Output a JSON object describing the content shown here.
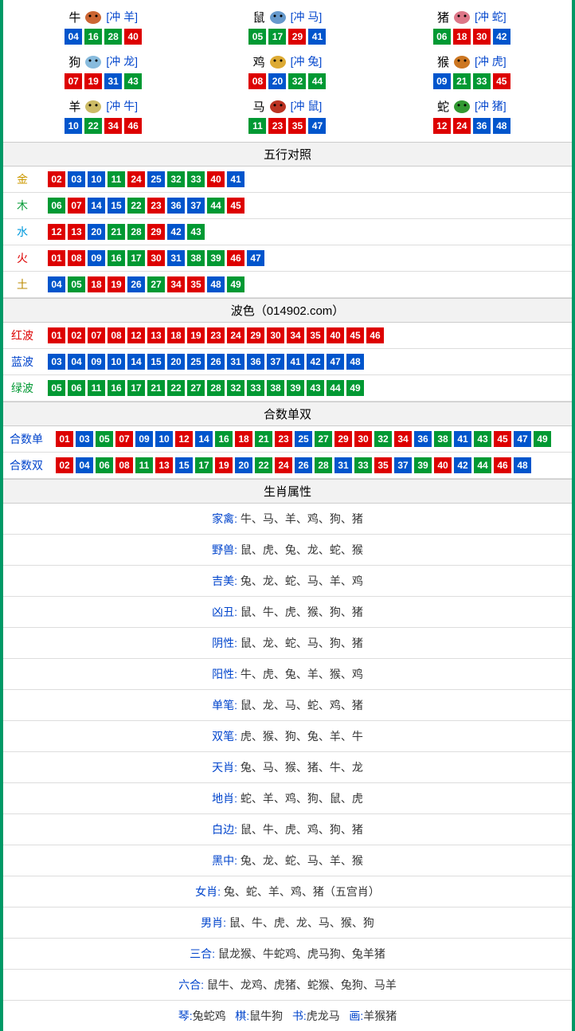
{
  "colors": {
    "red": "#dd0000",
    "blue": "#0055cc",
    "green": "#009933",
    "border": "#009966",
    "link": "#0044cc",
    "gold": "#cc9900",
    "wood": "#009933",
    "water": "#0099dd",
    "fire": "#dd0000",
    "earth": "#bb8800"
  },
  "zodiac": [
    {
      "name": "牛",
      "clash": "[冲 羊]",
      "icon": "#cc6633",
      "nums": [
        {
          "n": "04",
          "c": "blue"
        },
        {
          "n": "16",
          "c": "green"
        },
        {
          "n": "28",
          "c": "green"
        },
        {
          "n": "40",
          "c": "red"
        }
      ]
    },
    {
      "name": "鼠",
      "clash": "[冲 马]",
      "icon": "#6699cc",
      "nums": [
        {
          "n": "05",
          "c": "green"
        },
        {
          "n": "17",
          "c": "green"
        },
        {
          "n": "29",
          "c": "red"
        },
        {
          "n": "41",
          "c": "blue"
        }
      ]
    },
    {
      "name": "猪",
      "clash": "[冲 蛇]",
      "icon": "#dd7788",
      "nums": [
        {
          "n": "06",
          "c": "green"
        },
        {
          "n": "18",
          "c": "red"
        },
        {
          "n": "30",
          "c": "red"
        },
        {
          "n": "42",
          "c": "blue"
        }
      ]
    },
    {
      "name": "狗",
      "clash": "[冲 龙]",
      "icon": "#88bbdd",
      "nums": [
        {
          "n": "07",
          "c": "red"
        },
        {
          "n": "19",
          "c": "red"
        },
        {
          "n": "31",
          "c": "blue"
        },
        {
          "n": "43",
          "c": "green"
        }
      ]
    },
    {
      "name": "鸡",
      "clash": "[冲 兔]",
      "icon": "#ddaa33",
      "nums": [
        {
          "n": "08",
          "c": "red"
        },
        {
          "n": "20",
          "c": "blue"
        },
        {
          "n": "32",
          "c": "green"
        },
        {
          "n": "44",
          "c": "green"
        }
      ]
    },
    {
      "name": "猴",
      "clash": "[冲 虎]",
      "icon": "#cc7722",
      "nums": [
        {
          "n": "09",
          "c": "blue"
        },
        {
          "n": "21",
          "c": "green"
        },
        {
          "n": "33",
          "c": "green"
        },
        {
          "n": "45",
          "c": "red"
        }
      ]
    },
    {
      "name": "羊",
      "clash": "[冲 牛]",
      "icon": "#ccbb66",
      "nums": [
        {
          "n": "10",
          "c": "blue"
        },
        {
          "n": "22",
          "c": "green"
        },
        {
          "n": "34",
          "c": "red"
        },
        {
          "n": "46",
          "c": "red"
        }
      ]
    },
    {
      "name": "马",
      "clash": "[冲 鼠]",
      "icon": "#bb3322",
      "nums": [
        {
          "n": "11",
          "c": "green"
        },
        {
          "n": "23",
          "c": "red"
        },
        {
          "n": "35",
          "c": "red"
        },
        {
          "n": "47",
          "c": "blue"
        }
      ]
    },
    {
      "name": "蛇",
      "clash": "[冲 猪]",
      "icon": "#339933",
      "nums": [
        {
          "n": "12",
          "c": "red"
        },
        {
          "n": "24",
          "c": "red"
        },
        {
          "n": "36",
          "c": "blue"
        },
        {
          "n": "48",
          "c": "blue"
        }
      ]
    }
  ],
  "headers": {
    "wuxing": "五行对照",
    "bose": "波色（014902.com）",
    "heshu": "合数单双",
    "shuxing": "生肖属性"
  },
  "wuxing": [
    {
      "label": "金",
      "color": "gold",
      "nums": [
        {
          "n": "02",
          "c": "red"
        },
        {
          "n": "03",
          "c": "blue"
        },
        {
          "n": "10",
          "c": "blue"
        },
        {
          "n": "11",
          "c": "green"
        },
        {
          "n": "24",
          "c": "red"
        },
        {
          "n": "25",
          "c": "blue"
        },
        {
          "n": "32",
          "c": "green"
        },
        {
          "n": "33",
          "c": "green"
        },
        {
          "n": "40",
          "c": "red"
        },
        {
          "n": "41",
          "c": "blue"
        }
      ]
    },
    {
      "label": "木",
      "color": "wood",
      "nums": [
        {
          "n": "06",
          "c": "green"
        },
        {
          "n": "07",
          "c": "red"
        },
        {
          "n": "14",
          "c": "blue"
        },
        {
          "n": "15",
          "c": "blue"
        },
        {
          "n": "22",
          "c": "green"
        },
        {
          "n": "23",
          "c": "red"
        },
        {
          "n": "36",
          "c": "blue"
        },
        {
          "n": "37",
          "c": "blue"
        },
        {
          "n": "44",
          "c": "green"
        },
        {
          "n": "45",
          "c": "red"
        }
      ]
    },
    {
      "label": "水",
      "color": "water",
      "nums": [
        {
          "n": "12",
          "c": "red"
        },
        {
          "n": "13",
          "c": "red"
        },
        {
          "n": "20",
          "c": "blue"
        },
        {
          "n": "21",
          "c": "green"
        },
        {
          "n": "28",
          "c": "green"
        },
        {
          "n": "29",
          "c": "red"
        },
        {
          "n": "42",
          "c": "blue"
        },
        {
          "n": "43",
          "c": "green"
        }
      ]
    },
    {
      "label": "火",
      "color": "fire",
      "nums": [
        {
          "n": "01",
          "c": "red"
        },
        {
          "n": "08",
          "c": "red"
        },
        {
          "n": "09",
          "c": "blue"
        },
        {
          "n": "16",
          "c": "green"
        },
        {
          "n": "17",
          "c": "green"
        },
        {
          "n": "30",
          "c": "red"
        },
        {
          "n": "31",
          "c": "blue"
        },
        {
          "n": "38",
          "c": "green"
        },
        {
          "n": "39",
          "c": "green"
        },
        {
          "n": "46",
          "c": "red"
        },
        {
          "n": "47",
          "c": "blue"
        }
      ]
    },
    {
      "label": "土",
      "color": "earth",
      "nums": [
        {
          "n": "04",
          "c": "blue"
        },
        {
          "n": "05",
          "c": "green"
        },
        {
          "n": "18",
          "c": "red"
        },
        {
          "n": "19",
          "c": "red"
        },
        {
          "n": "26",
          "c": "blue"
        },
        {
          "n": "27",
          "c": "green"
        },
        {
          "n": "34",
          "c": "red"
        },
        {
          "n": "35",
          "c": "red"
        },
        {
          "n": "48",
          "c": "blue"
        },
        {
          "n": "49",
          "c": "green"
        }
      ]
    }
  ],
  "bose": [
    {
      "label": "红波",
      "color": "fire",
      "nums": [
        {
          "n": "01",
          "c": "red"
        },
        {
          "n": "02",
          "c": "red"
        },
        {
          "n": "07",
          "c": "red"
        },
        {
          "n": "08",
          "c": "red"
        },
        {
          "n": "12",
          "c": "red"
        },
        {
          "n": "13",
          "c": "red"
        },
        {
          "n": "18",
          "c": "red"
        },
        {
          "n": "19",
          "c": "red"
        },
        {
          "n": "23",
          "c": "red"
        },
        {
          "n": "24",
          "c": "red"
        },
        {
          "n": "29",
          "c": "red"
        },
        {
          "n": "30",
          "c": "red"
        },
        {
          "n": "34",
          "c": "red"
        },
        {
          "n": "35",
          "c": "red"
        },
        {
          "n": "40",
          "c": "red"
        },
        {
          "n": "45",
          "c": "red"
        },
        {
          "n": "46",
          "c": "red"
        }
      ]
    },
    {
      "label": "蓝波",
      "color": "link",
      "nums": [
        {
          "n": "03",
          "c": "blue"
        },
        {
          "n": "04",
          "c": "blue"
        },
        {
          "n": "09",
          "c": "blue"
        },
        {
          "n": "10",
          "c": "blue"
        },
        {
          "n": "14",
          "c": "blue"
        },
        {
          "n": "15",
          "c": "blue"
        },
        {
          "n": "20",
          "c": "blue"
        },
        {
          "n": "25",
          "c": "blue"
        },
        {
          "n": "26",
          "c": "blue"
        },
        {
          "n": "31",
          "c": "blue"
        },
        {
          "n": "36",
          "c": "blue"
        },
        {
          "n": "37",
          "c": "blue"
        },
        {
          "n": "41",
          "c": "blue"
        },
        {
          "n": "42",
          "c": "blue"
        },
        {
          "n": "47",
          "c": "blue"
        },
        {
          "n": "48",
          "c": "blue"
        }
      ]
    },
    {
      "label": "绿波",
      "color": "wood",
      "nums": [
        {
          "n": "05",
          "c": "green"
        },
        {
          "n": "06",
          "c": "green"
        },
        {
          "n": "11",
          "c": "green"
        },
        {
          "n": "16",
          "c": "green"
        },
        {
          "n": "17",
          "c": "green"
        },
        {
          "n": "21",
          "c": "green"
        },
        {
          "n": "22",
          "c": "green"
        },
        {
          "n": "27",
          "c": "green"
        },
        {
          "n": "28",
          "c": "green"
        },
        {
          "n": "32",
          "c": "green"
        },
        {
          "n": "33",
          "c": "green"
        },
        {
          "n": "38",
          "c": "green"
        },
        {
          "n": "39",
          "c": "green"
        },
        {
          "n": "43",
          "c": "green"
        },
        {
          "n": "44",
          "c": "green"
        },
        {
          "n": "49",
          "c": "green"
        }
      ]
    }
  ],
  "heshu": [
    {
      "label": "合数单",
      "color": "link",
      "nums": [
        {
          "n": "01",
          "c": "red"
        },
        {
          "n": "03",
          "c": "blue"
        },
        {
          "n": "05",
          "c": "green"
        },
        {
          "n": "07",
          "c": "red"
        },
        {
          "n": "09",
          "c": "blue"
        },
        {
          "n": "10",
          "c": "blue"
        },
        {
          "n": "12",
          "c": "red"
        },
        {
          "n": "14",
          "c": "blue"
        },
        {
          "n": "16",
          "c": "green"
        },
        {
          "n": "18",
          "c": "red"
        },
        {
          "n": "21",
          "c": "green"
        },
        {
          "n": "23",
          "c": "red"
        },
        {
          "n": "25",
          "c": "blue"
        },
        {
          "n": "27",
          "c": "green"
        },
        {
          "n": "29",
          "c": "red"
        },
        {
          "n": "30",
          "c": "red"
        },
        {
          "n": "32",
          "c": "green"
        },
        {
          "n": "34",
          "c": "red"
        },
        {
          "n": "36",
          "c": "blue"
        },
        {
          "n": "38",
          "c": "green"
        },
        {
          "n": "41",
          "c": "blue"
        },
        {
          "n": "43",
          "c": "green"
        },
        {
          "n": "45",
          "c": "red"
        },
        {
          "n": "47",
          "c": "blue"
        },
        {
          "n": "49",
          "c": "green"
        }
      ]
    },
    {
      "label": "合数双",
      "color": "link",
      "nums": [
        {
          "n": "02",
          "c": "red"
        },
        {
          "n": "04",
          "c": "blue"
        },
        {
          "n": "06",
          "c": "green"
        },
        {
          "n": "08",
          "c": "red"
        },
        {
          "n": "11",
          "c": "green"
        },
        {
          "n": "13",
          "c": "red"
        },
        {
          "n": "15",
          "c": "blue"
        },
        {
          "n": "17",
          "c": "green"
        },
        {
          "n": "19",
          "c": "red"
        },
        {
          "n": "20",
          "c": "blue"
        },
        {
          "n": "22",
          "c": "green"
        },
        {
          "n": "24",
          "c": "red"
        },
        {
          "n": "26",
          "c": "blue"
        },
        {
          "n": "28",
          "c": "green"
        },
        {
          "n": "31",
          "c": "blue"
        },
        {
          "n": "33",
          "c": "green"
        },
        {
          "n": "35",
          "c": "red"
        },
        {
          "n": "37",
          "c": "blue"
        },
        {
          "n": "39",
          "c": "green"
        },
        {
          "n": "40",
          "c": "red"
        },
        {
          "n": "42",
          "c": "blue"
        },
        {
          "n": "44",
          "c": "green"
        },
        {
          "n": "46",
          "c": "red"
        },
        {
          "n": "48",
          "c": "blue"
        }
      ]
    }
  ],
  "shuxing": [
    {
      "label": "家禽:",
      "val": "牛、马、羊、鸡、狗、猪"
    },
    {
      "label": "野兽:",
      "val": "鼠、虎、兔、龙、蛇、猴"
    },
    {
      "label": "吉美:",
      "val": "兔、龙、蛇、马、羊、鸡"
    },
    {
      "label": "凶丑:",
      "val": "鼠、牛、虎、猴、狗、猪"
    },
    {
      "label": "阴性:",
      "val": "鼠、龙、蛇、马、狗、猪"
    },
    {
      "label": "阳性:",
      "val": "牛、虎、兔、羊、猴、鸡"
    },
    {
      "label": "单笔:",
      "val": "鼠、龙、马、蛇、鸡、猪"
    },
    {
      "label": "双笔:",
      "val": "虎、猴、狗、兔、羊、牛"
    },
    {
      "label": "天肖:",
      "val": "兔、马、猴、猪、牛、龙"
    },
    {
      "label": "地肖:",
      "val": "蛇、羊、鸡、狗、鼠、虎"
    },
    {
      "label": "白边:",
      "val": "鼠、牛、虎、鸡、狗、猪"
    },
    {
      "label": "黑中:",
      "val": "兔、龙、蛇、马、羊、猴"
    },
    {
      "label": "女肖:",
      "val": "兔、蛇、羊、鸡、猪（五宫肖）"
    },
    {
      "label": "男肖:",
      "val": "鼠、牛、虎、龙、马、猴、狗"
    },
    {
      "label": "三合:",
      "val": "鼠龙猴、牛蛇鸡、虎马狗、兔羊猪"
    },
    {
      "label": "六合:",
      "val": "鼠牛、龙鸡、虎猪、蛇猴、兔狗、马羊"
    }
  ],
  "bottom": [
    {
      "label": "琴:",
      "val": "兔蛇鸡"
    },
    {
      "label": "棋:",
      "val": "鼠牛狗"
    },
    {
      "label": "书:",
      "val": "虎龙马"
    },
    {
      "label": "画:",
      "val": "羊猴猪"
    }
  ]
}
